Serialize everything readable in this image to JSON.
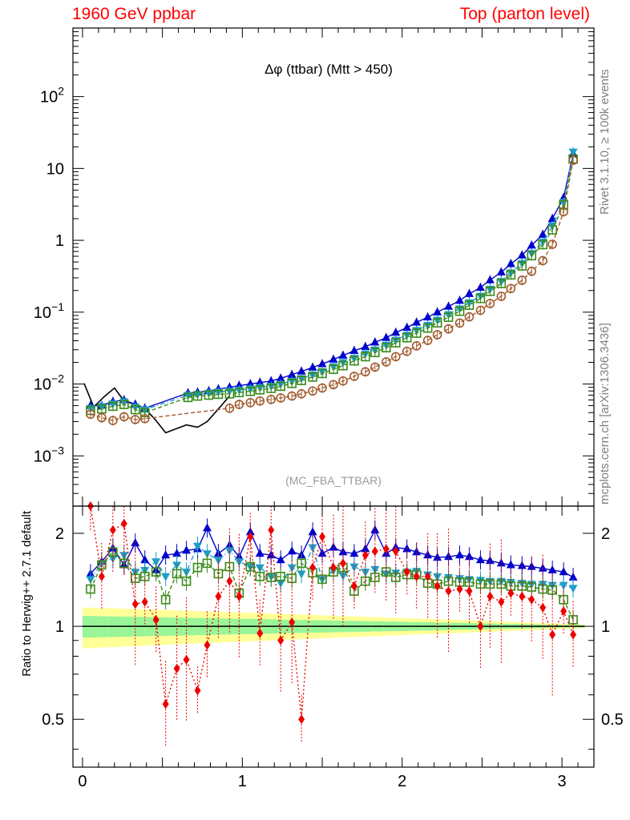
{
  "header": {
    "left": "1960 GeV ppbar",
    "right": "Top (parton level)"
  },
  "side_labels": {
    "rivet": "Rivet 3.1.10, ≥ 100k events",
    "mcplots": "mcplots.cern.ch [arXiv:1306.3436]"
  },
  "chart_data": [
    {
      "type": "line",
      "title": "Δφ (ttbar) (Mtt > 450)",
      "subtitle": "(MC_FBA_TTBAR)",
      "xlabel": "",
      "ylabel": "",
      "xlim": [
        -0.06,
        3.2
      ],
      "ylim": [
        0.0002,
        900
      ],
      "log_y": true,
      "yticks": [
        {
          "value": 0.001,
          "base": "10",
          "exp": "−3"
        },
        {
          "value": 0.01,
          "base": "10",
          "exp": "−2"
        },
        {
          "value": 0.1,
          "base": "10",
          "exp": "−1"
        },
        {
          "value": 1,
          "base": "1",
          "exp": ""
        },
        {
          "value": 10,
          "base": "10",
          "exp": ""
        },
        {
          "value": 100,
          "base": "10",
          "exp": "2"
        }
      ],
      "series": [
        {
          "color": "#000000",
          "style": "solid-line",
          "x": [
            0.01,
            0.07,
            0.13,
            0.2,
            0.26,
            0.33,
            0.39,
            0.46,
            0.52,
            0.59,
            0.65,
            0.72,
            0.78,
            0.85,
            0.92
          ],
          "y": [
            0.0102,
            0.0048,
            0.0065,
            0.0088,
            0.0058,
            0.0052,
            0.0046,
            0.0031,
            0.0021,
            0.0024,
            0.0027,
            0.0025,
            0.003,
            0.0045,
            0.0068
          ]
        },
        {
          "color": "#0000cc",
          "style": "filled-triangle-up",
          "x": [
            0.05,
            0.12,
            0.19,
            0.26,
            0.33,
            0.39,
            0.66,
            0.72,
            0.79,
            0.85,
            0.92,
            0.98,
            1.05,
            1.11,
            1.18,
            1.24,
            1.31,
            1.37,
            1.44,
            1.5,
            1.57,
            1.63,
            1.7,
            1.77,
            1.83,
            1.9,
            1.96,
            2.03,
            2.09,
            2.16,
            2.22,
            2.29,
            2.36,
            2.42,
            2.49,
            2.55,
            2.62,
            2.68,
            2.75,
            2.81,
            2.88,
            2.94,
            3.01,
            3.07
          ],
          "y": [
            0.005,
            0.005,
            0.0057,
            0.006,
            0.0052,
            0.0046,
            0.0075,
            0.0077,
            0.008,
            0.0085,
            0.009,
            0.0095,
            0.01,
            0.0105,
            0.011,
            0.012,
            0.0135,
            0.015,
            0.017,
            0.019,
            0.022,
            0.025,
            0.029,
            0.033,
            0.038,
            0.044,
            0.052,
            0.061,
            0.072,
            0.085,
            0.1,
            0.12,
            0.145,
            0.18,
            0.22,
            0.28,
            0.36,
            0.47,
            0.62,
            0.85,
            1.2,
            2.0,
            3.9,
            16.0
          ]
        },
        {
          "color": "#1f9ec9",
          "style": "filled-triangle-down",
          "x": [
            0.05,
            0.12,
            0.19,
            0.26,
            0.33,
            0.39,
            0.66,
            0.72,
            0.79,
            0.85,
            0.92,
            0.98,
            1.05,
            1.11,
            1.18,
            1.24,
            1.31,
            1.37,
            1.44,
            1.5,
            1.57,
            1.63,
            1.7,
            1.77,
            1.83,
            1.9,
            1.96,
            2.03,
            2.09,
            2.16,
            2.22,
            2.29,
            2.36,
            2.42,
            2.49,
            2.55,
            2.62,
            2.68,
            2.75,
            2.81,
            2.88,
            2.94,
            3.01,
            3.07
          ],
          "y": [
            0.0046,
            0.0049,
            0.0053,
            0.0057,
            0.0048,
            0.0044,
            0.007,
            0.0072,
            0.0075,
            0.0078,
            0.008,
            0.0083,
            0.0086,
            0.009,
            0.0094,
            0.01,
            0.011,
            0.012,
            0.0135,
            0.015,
            0.0175,
            0.02,
            0.023,
            0.0265,
            0.03,
            0.035,
            0.041,
            0.048,
            0.056,
            0.066,
            0.078,
            0.093,
            0.112,
            0.136,
            0.168,
            0.21,
            0.27,
            0.355,
            0.48,
            0.66,
            0.95,
            1.6,
            3.4,
            17.0
          ]
        },
        {
          "color": "#3a8a1a",
          "style": "open-square",
          "x": [
            0.05,
            0.12,
            0.19,
            0.26,
            0.33,
            0.39,
            0.66,
            0.72,
            0.79,
            0.85,
            0.92,
            0.98,
            1.05,
            1.11,
            1.18,
            1.24,
            1.31,
            1.37,
            1.44,
            1.5,
            1.57,
            1.63,
            1.7,
            1.77,
            1.83,
            1.9,
            1.96,
            2.03,
            2.09,
            2.16,
            2.22,
            2.29,
            2.36,
            2.42,
            2.49,
            2.55,
            2.62,
            2.68,
            2.75,
            2.81,
            2.88,
            2.94,
            3.01,
            3.07
          ],
          "y": [
            0.0043,
            0.0045,
            0.0049,
            0.0052,
            0.0044,
            0.004,
            0.0065,
            0.0068,
            0.007,
            0.0072,
            0.0073,
            0.0076,
            0.0079,
            0.0083,
            0.0087,
            0.0093,
            0.0102,
            0.0112,
            0.0125,
            0.014,
            0.016,
            0.018,
            0.021,
            0.024,
            0.0275,
            0.032,
            0.0375,
            0.044,
            0.051,
            0.06,
            0.071,
            0.085,
            0.103,
            0.125,
            0.155,
            0.195,
            0.25,
            0.33,
            0.44,
            0.61,
            0.87,
            1.4,
            3.1,
            13.5
          ]
        },
        {
          "color": "#a05a2c",
          "style": "open-circle",
          "x": [
            0.05,
            0.12,
            0.19,
            0.26,
            0.33,
            0.39,
            0.92,
            0.98,
            1.05,
            1.11,
            1.18,
            1.24,
            1.31,
            1.37,
            1.44,
            1.5,
            1.57,
            1.63,
            1.7,
            1.77,
            1.83,
            1.9,
            1.96,
            2.03,
            2.09,
            2.16,
            2.22,
            2.29,
            2.36,
            2.42,
            2.49,
            2.55,
            2.62,
            2.68,
            2.75,
            2.81,
            2.88,
            2.94,
            3.01,
            3.07
          ],
          "y": [
            0.0038,
            0.0034,
            0.0031,
            0.0035,
            0.0032,
            0.0033,
            0.0046,
            0.0052,
            0.0055,
            0.0058,
            0.0061,
            0.0064,
            0.0068,
            0.0073,
            0.008,
            0.0088,
            0.0098,
            0.011,
            0.0128,
            0.0148,
            0.0172,
            0.0203,
            0.024,
            0.0285,
            0.034,
            0.0405,
            0.0485,
            0.0585,
            0.0705,
            0.086,
            0.106,
            0.132,
            0.166,
            0.213,
            0.278,
            0.37,
            0.52,
            0.88,
            2.5,
            13.0
          ]
        }
      ]
    },
    {
      "type": "line",
      "title": "",
      "xlabel": "",
      "ylabel": "Ratio to Herwig++ 2.7.1 default",
      "xlim": [
        -0.06,
        3.2
      ],
      "ylim": [
        0.35,
        2.45
      ],
      "log_y": true,
      "xticks": [
        "0",
        "1",
        "2",
        "3"
      ],
      "yticks": [
        0.5,
        1,
        2
      ],
      "reference_line": 1.0,
      "bands": {
        "inner_color": "#98f598",
        "outer_color": "#ffff98",
        "inner_halfwidth_start": 0.08,
        "outer_halfwidth_start": 0.15
      },
      "series": [
        {
          "color": "#0000cc",
          "style": "filled-triangle-up",
          "x": [
            0.05,
            0.12,
            0.19,
            0.26,
            0.33,
            0.39,
            0.46,
            0.52,
            0.59,
            0.65,
            0.72,
            0.78,
            0.85,
            0.92,
            0.98,
            1.05,
            1.11,
            1.18,
            1.24,
            1.31,
            1.37,
            1.44,
            1.5,
            1.57,
            1.63,
            1.7,
            1.77,
            1.83,
            1.9,
            1.96,
            2.03,
            2.09,
            2.16,
            2.22,
            2.29,
            2.36,
            2.42,
            2.49,
            2.55,
            2.62,
            2.68,
            2.75,
            2.81,
            2.88,
            2.94,
            3.01,
            3.07
          ],
          "y": [
            1.48,
            1.62,
            1.79,
            1.58,
            1.86,
            1.64,
            1.52,
            1.7,
            1.72,
            1.76,
            1.78,
            2.08,
            1.72,
            1.83,
            1.68,
            2.02,
            1.72,
            1.7,
            1.64,
            1.75,
            1.7,
            2.02,
            1.72,
            1.8,
            1.74,
            1.72,
            1.78,
            2.05,
            1.72,
            1.8,
            1.78,
            1.74,
            1.7,
            1.67,
            1.68,
            1.7,
            1.68,
            1.64,
            1.63,
            1.6,
            1.58,
            1.57,
            1.56,
            1.54,
            1.52,
            1.5,
            1.44
          ]
        },
        {
          "color": "#1f9ec9",
          "style": "filled-triangle-down",
          "x": [
            0.05,
            0.12,
            0.19,
            0.26,
            0.33,
            0.39,
            0.46,
            0.52,
            0.59,
            0.65,
            0.72,
            0.78,
            0.85,
            0.92,
            0.98,
            1.05,
            1.11,
            1.18,
            1.24,
            1.31,
            1.37,
            1.44,
            1.5,
            1.57,
            1.63,
            1.7,
            1.77,
            1.83,
            1.9,
            1.96,
            2.03,
            2.09,
            2.16,
            2.22,
            2.29,
            2.36,
            2.42,
            2.49,
            2.55,
            2.62,
            2.68,
            2.75,
            2.81,
            2.88,
            2.94,
            3.01,
            3.07
          ],
          "y": [
            1.42,
            1.6,
            1.66,
            1.7,
            1.5,
            1.52,
            1.62,
            1.45,
            1.58,
            1.5,
            1.82,
            1.72,
            1.64,
            1.76,
            1.62,
            1.56,
            1.55,
            1.45,
            1.38,
            1.55,
            1.48,
            1.8,
            1.42,
            1.52,
            1.46,
            1.56,
            1.5,
            1.53,
            1.48,
            1.49,
            1.5,
            1.51,
            1.47,
            1.45,
            1.44,
            1.43,
            1.42,
            1.41,
            1.4,
            1.4,
            1.39,
            1.38,
            1.37,
            1.37,
            1.36,
            1.36,
            1.33
          ]
        },
        {
          "color": "#3a8a1a",
          "style": "open-square",
          "x": [
            0.05,
            0.12,
            0.19,
            0.26,
            0.33,
            0.39,
            0.46,
            0.52,
            0.59,
            0.65,
            0.72,
            0.78,
            0.85,
            0.92,
            0.98,
            1.05,
            1.11,
            1.18,
            1.24,
            1.31,
            1.37,
            1.44,
            1.5,
            1.57,
            1.63,
            1.7,
            1.77,
            1.83,
            1.9,
            1.96,
            2.03,
            2.09,
            2.16,
            2.22,
            2.29,
            2.36,
            2.42,
            2.49,
            2.55,
            2.62,
            2.68,
            2.75,
            2.81,
            2.88,
            2.94,
            3.01,
            3.07
          ],
          "y": [
            1.32,
            1.58,
            1.74,
            1.6,
            1.43,
            1.45,
            1.5,
            1.22,
            1.48,
            1.4,
            1.55,
            1.6,
            1.48,
            1.56,
            1.28,
            1.56,
            1.45,
            1.44,
            1.45,
            1.43,
            1.6,
            1.49,
            1.42,
            1.5,
            1.55,
            1.3,
            1.4,
            1.44,
            1.5,
            1.44,
            1.47,
            1.47,
            1.38,
            1.37,
            1.4,
            1.39,
            1.39,
            1.37,
            1.37,
            1.37,
            1.35,
            1.35,
            1.34,
            1.32,
            1.31,
            1.22,
            1.05
          ]
        },
        {
          "color": "#ee0000",
          "style": "filled-diamond",
          "x": [
            0.05,
            0.12,
            0.19,
            0.26,
            0.33,
            0.39,
            0.46,
            0.52,
            0.59,
            0.65,
            0.72,
            0.78,
            0.85,
            0.92,
            0.98,
            1.05,
            1.11,
            1.18,
            1.24,
            1.31,
            1.37,
            1.44,
            1.5,
            1.57,
            1.63,
            1.7,
            1.77,
            1.83,
            1.9,
            1.96,
            2.03,
            2.09,
            2.16,
            2.22,
            2.29,
            2.36,
            2.42,
            2.49,
            2.55,
            2.62,
            2.68,
            2.75,
            2.81,
            2.88,
            2.94,
            3.01,
            3.07
          ],
          "y": [
            2.5,
            1.45,
            2.05,
            2.15,
            1.18,
            1.2,
            1.05,
            0.56,
            0.73,
            0.78,
            0.62,
            0.87,
            1.25,
            1.4,
            1.25,
            1.95,
            0.95,
            2.05,
            0.9,
            1.03,
            0.5,
            1.55,
            1.95,
            1.55,
            1.6,
            1.35,
            1.7,
            1.75,
            1.78,
            1.75,
            1.5,
            1.45,
            1.45,
            1.35,
            1.3,
            1.32,
            1.3,
            1.0,
            1.25,
            1.2,
            1.28,
            1.25,
            1.22,
            1.15,
            0.94,
            1.12,
            0.94
          ]
        }
      ]
    }
  ]
}
